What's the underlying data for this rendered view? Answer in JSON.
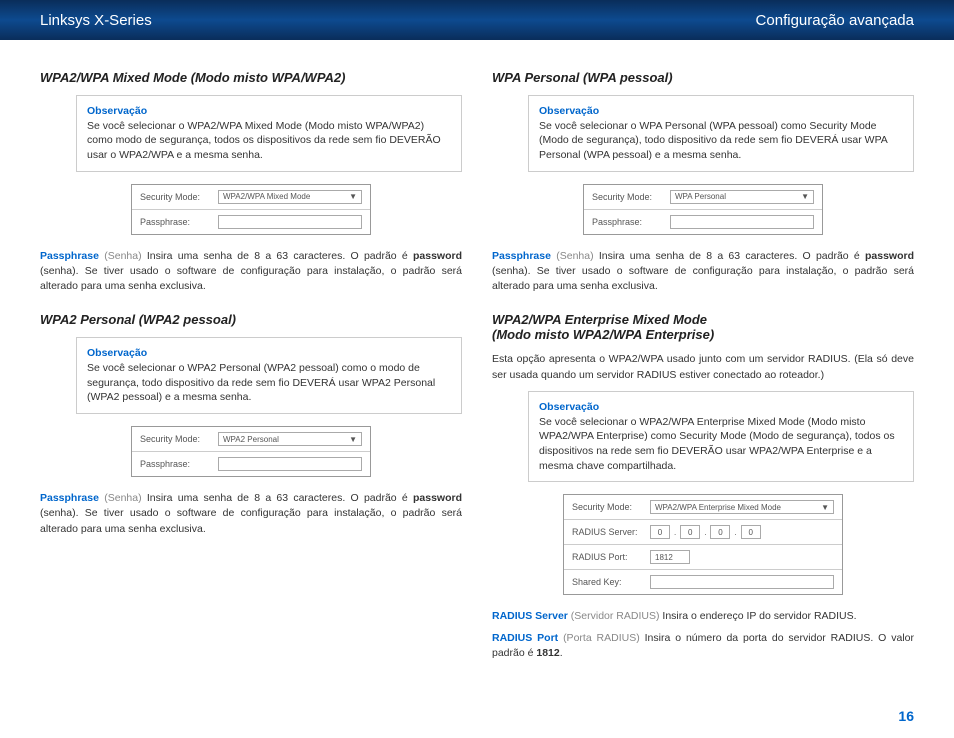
{
  "header": {
    "left": "Linksys X-Series",
    "right": "Configuração avançada"
  },
  "left_column": {
    "section1": {
      "title": "WPA2/WPA Mixed Mode (Modo misto WPA/WPA2)",
      "note_header": "Observação",
      "note_body": "Se você selecionar o WPA2/WPA Mixed Mode (Modo misto WPA/WPA2) como modo de segurança, todos os dispositivos da rede sem fio DEVERÃO usar o WPA2/WPA e a mesma senha.",
      "form": {
        "security_mode_label": "Security Mode:",
        "security_mode_value": "WPA2/WPA Mixed Mode",
        "passphrase_label": "Passphrase:"
      },
      "body1_term": "Passphrase",
      "body1_gray": "(Senha)",
      "body1_rest": " Insira uma senha de 8 a 63 caracteres. O padrão é ",
      "body1_bold": "password",
      "body1_end": " (senha). Se tiver usado o software de configuração para instalação, o padrão será alterado para uma senha exclusiva."
    },
    "section2": {
      "title": "WPA2 Personal (WPA2 pessoal)",
      "note_header": "Observação",
      "note_body": "Se você selecionar o WPA2 Personal (WPA2 pessoal) como o modo de segurança, todo dispositivo da rede sem fio DEVERÁ usar WPA2 Personal (WPA2 pessoal) e a mesma senha.",
      "form": {
        "security_mode_label": "Security Mode:",
        "security_mode_value": "WPA2 Personal",
        "passphrase_label": "Passphrase:"
      },
      "body1_term": "Passphrase",
      "body1_gray": "(Senha)",
      "body1_rest": " Insira uma senha de 8 a 63 caracteres. O padrão é ",
      "body1_bold": "password",
      "body1_end": " (senha). Se tiver usado o software de configuração para instalação, o padrão será alterado para uma senha exclusiva."
    }
  },
  "right_column": {
    "section1": {
      "title": "WPA Personal (WPA pessoal)",
      "note_header": "Observação",
      "note_body": "Se você selecionar o WPA Personal (WPA pessoal) como Security Mode (Modo de segurança), todo dispositivo da rede sem fio DEVERÁ usar WPA Personal (WPA pessoal) e a mesma senha.",
      "form": {
        "security_mode_label": "Security Mode:",
        "security_mode_value": "WPA Personal",
        "passphrase_label": "Passphrase:"
      },
      "body1_term": "Passphrase",
      "body1_gray": "(Senha)",
      "body1_rest": " Insira uma senha de 8 a 63 caracteres. O padrão é ",
      "body1_bold": "password",
      "body1_end": " (senha). Se tiver usado o software de configuração para instalação, o padrão será alterado para uma senha exclusiva."
    },
    "section2": {
      "title_line1": "WPA2/WPA Enterprise Mixed Mode",
      "title_line2": "(Modo misto WPA2/WPA Enterprise)",
      "intro": "Esta opção apresenta o WPA2/WPA usado junto com um servidor RADIUS. (Ela só deve ser usada quando um servidor RADIUS estiver conectado ao roteador.)",
      "note_header": "Observação",
      "note_body": "Se você selecionar o WPA2/WPA Enterprise Mixed Mode (Modo misto WPA2/WPA Enterprise) como Security Mode (Modo de segurança), todos os dispositivos na rede sem fio DEVERÃO usar WPA2/WPA Enterprise e a mesma chave compartilhada.",
      "form": {
        "security_mode_label": "Security Mode:",
        "security_mode_value": "WPA2/WPA Enterprise Mixed Mode",
        "radius_server_label": "RADIUS Server:",
        "radius_server_ip": [
          "0",
          "0",
          "0",
          "0"
        ],
        "radius_port_label": "RADIUS Port:",
        "radius_port_value": "1812",
        "shared_key_label": "Shared Key:"
      },
      "radius_server_term": "RADIUS Server",
      "radius_server_gray": "(Servidor RADIUS)",
      "radius_server_text": " Insira o endereço IP do servidor RADIUS.",
      "radius_port_term": "RADIUS Port",
      "radius_port_gray": "(Porta RADIUS)",
      "radius_port_text": " Insira o número da porta do servidor RADIUS. O valor padrão é ",
      "radius_port_bold": "1812",
      "radius_port_end": "."
    }
  },
  "page_number": "16"
}
